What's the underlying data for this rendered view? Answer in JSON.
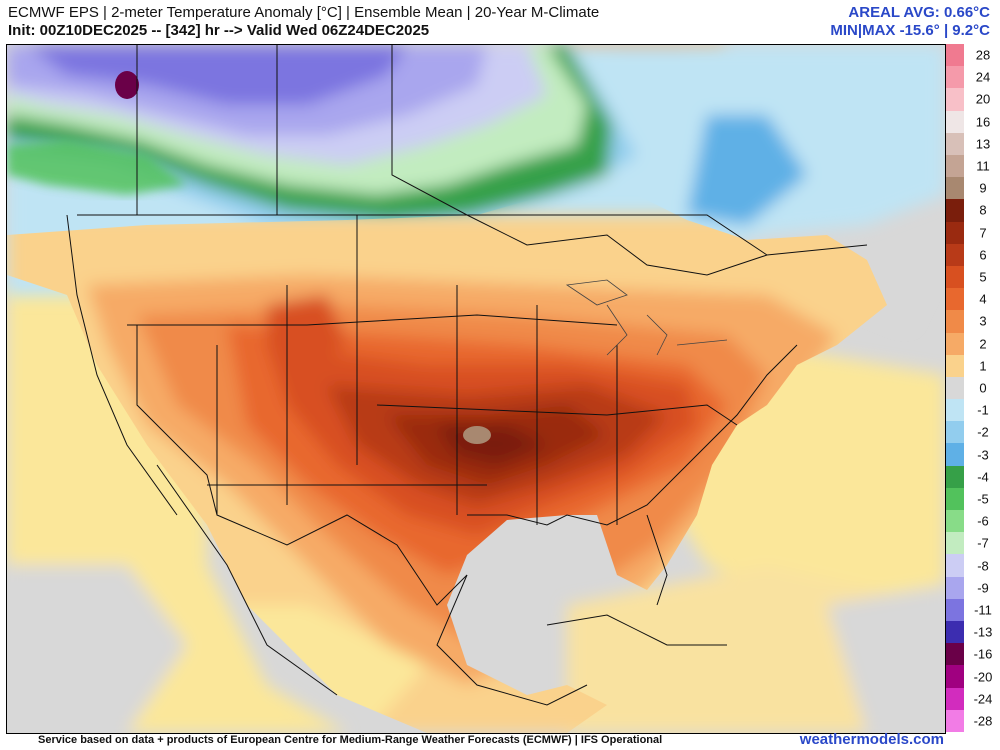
{
  "header": {
    "title_line1": "ECMWF EPS | 2-meter Temperature Anomaly [°C] | Ensemble Mean | 20-Year M-Climate",
    "title_line2": "Init: 00Z10DEC2025 -- [342] hr --> Valid Wed 06Z24DEC2025",
    "areal_avg": "AREAL AVG: 0.66°C",
    "min_max": "MIN|MAX -15.6° | 9.2°C"
  },
  "footer": {
    "credit": "Service based on data + products of European Centre for Medium-Range Weather Forecasts (ECMWF) | IFS Operational",
    "site": "weathermodels.com"
  },
  "colorbar": {
    "levels": [
      {
        "label": "28",
        "color": "#f07a90"
      },
      {
        "label": "24",
        "color": "#f59aaa"
      },
      {
        "label": "20",
        "color": "#f8c0c8"
      },
      {
        "label": "16",
        "color": "#efe6e6"
      },
      {
        "label": "13",
        "color": "#d8c0b8"
      },
      {
        "label": "11",
        "color": "#c4a494"
      },
      {
        "label": "9",
        "color": "#a88870"
      },
      {
        "label": "8",
        "color": "#7a1e0c"
      },
      {
        "label": "7",
        "color": "#9a2a10"
      },
      {
        "label": "6",
        "color": "#b83a18"
      },
      {
        "label": "5",
        "color": "#d85020"
      },
      {
        "label": "4",
        "color": "#e8682e"
      },
      {
        "label": "3",
        "color": "#f08a48"
      },
      {
        "label": "2",
        "color": "#f6aa66"
      },
      {
        "label": "1",
        "color": "#fad28c"
      },
      {
        "label": "0",
        "color": "#d8d8d8"
      },
      {
        "label": "-1",
        "color": "#bfe4f4"
      },
      {
        "label": "-2",
        "color": "#92cdee"
      },
      {
        "label": "-3",
        "color": "#5fb0e6"
      },
      {
        "label": "-4",
        "color": "#36a048"
      },
      {
        "label": "-5",
        "color": "#52c25c"
      },
      {
        "label": "-6",
        "color": "#88dc88"
      },
      {
        "label": "-7",
        "color": "#c2ecc0"
      },
      {
        "label": "-8",
        "color": "#cccdf4"
      },
      {
        "label": "-9",
        "color": "#a9a6ee"
      },
      {
        "label": "-11",
        "color": "#7c74e0"
      },
      {
        "label": "-13",
        "color": "#3c2db0"
      },
      {
        "label": "-16",
        "color": "#6a0048"
      },
      {
        "label": "-20",
        "color": "#a00080"
      },
      {
        "label": "-24",
        "color": "#d22cbe"
      },
      {
        "label": "-28",
        "color": "#f27ce6"
      }
    ]
  },
  "legend_colors": {
    "ocean_neutral": "#d8d8d8",
    "border_line": "#111111",
    "accent_blue": "#2a48c8"
  }
}
